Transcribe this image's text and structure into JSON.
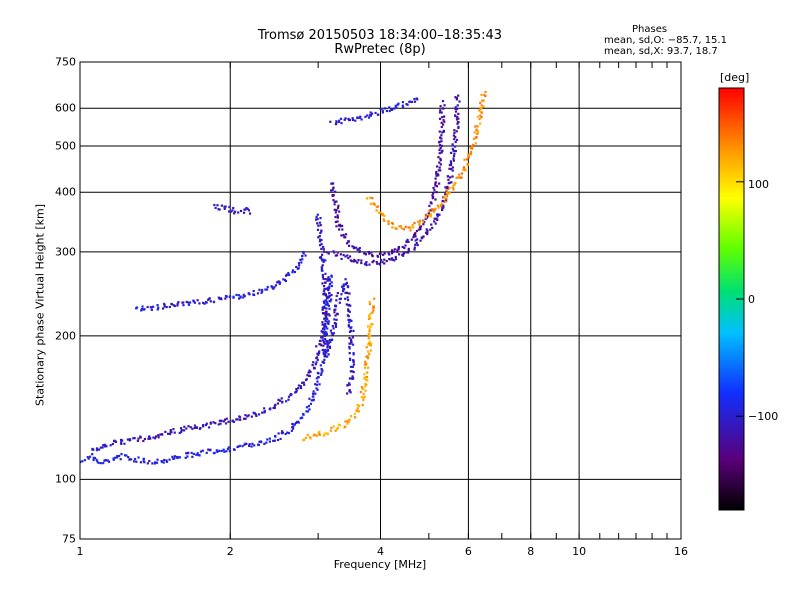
{
  "chart_data": {
    "type": "scatter",
    "title": "Tromsø 20150503 18:34:00–18:35:43",
    "subtitle": "RwPretec (8p)",
    "annotation": {
      "heading": "Phases",
      "line1": "mean, sd,O: −85.7, 15.1",
      "line2": "mean, sd,X:  93.7, 18.7"
    },
    "xlabel": "Frequency [MHz]",
    "ylabel": "Stationary phase Virtual Height [km]",
    "x_scale": "log",
    "y_scale": "log",
    "xlim": [
      1,
      16
    ],
    "ylim": [
      75,
      750
    ],
    "x_ticks": [
      "1",
      "2",
      "4",
      "6",
      "8",
      "10",
      "16"
    ],
    "y_ticks": [
      "75",
      "100",
      "200",
      "300",
      "400",
      "500",
      "600",
      "750"
    ],
    "grid": true,
    "colorbar": {
      "label": "[deg]",
      "range": [
        -180,
        180
      ],
      "ticks": [
        "100",
        "0",
        "−100"
      ]
    },
    "series": [
      {
        "phase": -95,
        "points": [
          [
            1.0,
            109
          ],
          [
            1.05,
            112
          ],
          [
            1.1,
            108
          ],
          [
            1.15,
            110
          ],
          [
            1.2,
            112
          ],
          [
            1.3,
            110
          ],
          [
            1.4,
            109
          ],
          [
            1.5,
            110
          ],
          [
            1.6,
            112
          ],
          [
            1.7,
            113
          ],
          [
            1.8,
            114
          ],
          [
            1.9,
            115
          ],
          [
            2.0,
            116
          ],
          [
            2.1,
            117
          ],
          [
            2.2,
            118
          ],
          [
            2.3,
            119
          ],
          [
            2.4,
            121
          ],
          [
            2.5,
            123
          ],
          [
            2.6,
            126
          ],
          [
            2.7,
            130
          ],
          [
            2.8,
            136
          ],
          [
            2.9,
            146
          ],
          [
            3.0,
            160
          ],
          [
            3.05,
            175
          ],
          [
            3.1,
            190
          ],
          [
            3.12,
            210
          ],
          [
            3.15,
            240
          ],
          [
            3.18,
            270
          ]
        ]
      },
      {
        "phase": -110,
        "points": [
          [
            1.05,
            115
          ],
          [
            1.15,
            119
          ],
          [
            1.3,
            121
          ],
          [
            1.45,
            124
          ],
          [
            1.6,
            127
          ],
          [
            1.8,
            130
          ],
          [
            2.0,
            133
          ],
          [
            2.2,
            136
          ],
          [
            2.4,
            141
          ],
          [
            2.6,
            148
          ],
          [
            2.8,
            158
          ],
          [
            2.95,
            175
          ],
          [
            3.05,
            200
          ],
          [
            3.1,
            230
          ],
          [
            3.15,
            265
          ]
        ]
      },
      {
        "phase": -100,
        "points": [
          [
            1.3,
            228
          ],
          [
            1.45,
            230
          ],
          [
            1.6,
            233
          ],
          [
            1.8,
            237
          ],
          [
            2.0,
            240
          ],
          [
            2.2,
            245
          ],
          [
            2.4,
            252
          ],
          [
            2.55,
            262
          ],
          [
            2.7,
            278
          ],
          [
            2.8,
            293
          ],
          [
            2.85,
            300
          ]
        ]
      },
      {
        "phase": -115,
        "points": [
          [
            3.15,
            300
          ],
          [
            3.3,
            294
          ],
          [
            3.5,
            289
          ],
          [
            3.7,
            285
          ],
          [
            3.9,
            284
          ],
          [
            4.1,
            286
          ],
          [
            4.3,
            292
          ],
          [
            4.6,
            305
          ],
          [
            4.9,
            325
          ],
          [
            5.2,
            355
          ],
          [
            5.4,
            390
          ],
          [
            5.55,
            450
          ],
          [
            5.65,
            520
          ],
          [
            5.7,
            600
          ],
          [
            5.72,
            640
          ]
        ]
      },
      {
        "phase": -120,
        "points": [
          [
            3.2,
            420
          ],
          [
            3.25,
            380
          ],
          [
            3.3,
            340
          ],
          [
            3.4,
            320
          ],
          [
            3.5,
            310
          ],
          [
            3.6,
            303
          ],
          [
            3.8,
            297
          ],
          [
            4.0,
            296
          ],
          [
            4.2,
            300
          ],
          [
            4.5,
            312
          ],
          [
            4.8,
            335
          ],
          [
            5.0,
            360
          ],
          [
            5.15,
            400
          ],
          [
            5.25,
            460
          ],
          [
            5.3,
            540
          ],
          [
            5.33,
            620
          ]
        ]
      },
      {
        "phase": -105,
        "points": [
          [
            3.0,
            360
          ],
          [
            3.02,
            330
          ],
          [
            3.05,
            300
          ],
          [
            3.08,
            270
          ],
          [
            3.1,
            240
          ],
          [
            3.1,
            210
          ],
          [
            3.1,
            180
          ],
          [
            3.2,
            200
          ],
          [
            3.3,
            240
          ],
          [
            3.4,
            260
          ],
          [
            3.45,
            230
          ],
          [
            3.5,
            200
          ],
          [
            3.5,
            170
          ],
          [
            3.45,
            150
          ]
        ]
      },
      {
        "phase": 120,
        "points": [
          [
            2.8,
            122
          ],
          [
            3.0,
            124
          ],
          [
            3.2,
            127
          ],
          [
            3.4,
            131
          ],
          [
            3.55,
            137
          ],
          [
            3.65,
            145
          ],
          [
            3.72,
            158
          ],
          [
            3.76,
            175
          ],
          [
            3.8,
            195
          ],
          [
            3.82,
            215
          ],
          [
            3.85,
            240
          ]
        ]
      },
      {
        "phase": 130,
        "points": [
          [
            3.8,
            390
          ],
          [
            3.9,
            375
          ],
          [
            4.0,
            360
          ],
          [
            4.1,
            350
          ],
          [
            4.3,
            340
          ],
          [
            4.5,
            335
          ],
          [
            4.8,
            345
          ],
          [
            5.0,
            360
          ],
          [
            5.3,
            380
          ],
          [
            5.6,
            410
          ],
          [
            5.9,
            450
          ],
          [
            6.1,
            500
          ],
          [
            6.3,
            560
          ],
          [
            6.4,
            620
          ],
          [
            6.45,
            650
          ]
        ]
      },
      {
        "phase": -100,
        "points": [
          [
            3.2,
            560
          ],
          [
            3.4,
            565
          ],
          [
            3.6,
            570
          ],
          [
            3.8,
            580
          ],
          [
            4.0,
            590
          ],
          [
            4.2,
            600
          ],
          [
            4.4,
            610
          ],
          [
            4.6,
            620
          ],
          [
            4.8,
            630
          ]
        ]
      },
      {
        "phase": -110,
        "points": [
          [
            1.85,
            375
          ],
          [
            1.95,
            370
          ],
          [
            2.05,
            365
          ],
          [
            2.15,
            368
          ],
          [
            2.2,
            362
          ]
        ]
      }
    ]
  }
}
